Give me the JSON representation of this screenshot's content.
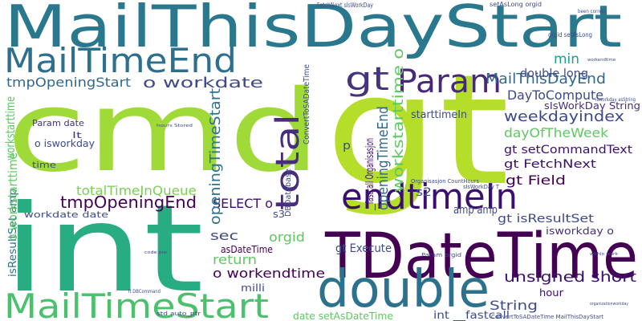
{
  "words": [
    "MailThisDayStart",
    "cmd",
    "gt",
    "int",
    "TDateTime",
    "double",
    "MailTimeEnd",
    "MailTimeStart",
    "endtimeIn",
    "Param",
    "gt",
    "total",
    "MailThisDayEnd",
    "min",
    "double long",
    "DayToCompute",
    "weekdayindex",
    "sIsWorkDay String",
    "dayOfTheWeek",
    "gt setCommandText",
    "gt FetchNext",
    "gt Field",
    "gt isResultSet",
    "isworkday o",
    "unsigned short",
    "hour",
    "String",
    "int __fastcall",
    "date setAsDateTime",
    "tmpOpeningStart",
    "o workdate",
    "totalTimeInQueue",
    "tmpOpeningEnd",
    "SELECT o",
    "workdate date",
    "isResultSet amp",
    "o workstarttime",
    "workstarttime",
    "Param date",
    "lt",
    "o isworkday",
    "time",
    "sec",
    "return",
    "asDateTime",
    "orgid",
    "o workendtime",
    "milli",
    "openingTimeStart",
    "workstarttime o",
    "openingTimeEnd",
    "starttimeIn",
    "amp amp",
    "s2",
    "s3",
    "gt Execute",
    "p",
    "FetchNext sIsWorkDay",
    "setAsLong orgid",
    "orgid setAsLong",
    "DBDatabase",
    "__fastcall Organisasjon",
    "ConvertToSADateTime",
    "Param orgid",
    "Organisasjon CountHours",
    "sIsWorkDay T",
    "ConvertToSADateTime MailThisDayStart",
    "std auto_ptr",
    "lt DBCommand",
    "code pre",
    "hours Stored",
    "workendtime",
    "isworkday asString",
    "been correct",
    "within work",
    "organizationworkday"
  ]
}
